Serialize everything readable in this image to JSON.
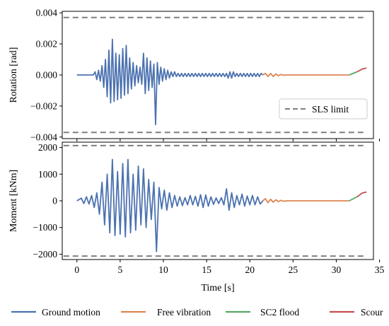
{
  "colors": {
    "ground_motion": "#4c72b0",
    "free_vibration": "#dd8452",
    "sc2_flood": "#55a868",
    "scour": "#c44e52",
    "limit": "#7f7f7f"
  },
  "chart_data": [
    {
      "type": "line",
      "panel": "top",
      "xlabel": "",
      "ylabel": "Rotation [rad]",
      "xlim": [
        -1.7,
        34.3
      ],
      "ylim": [
        -0.0041,
        0.0041
      ],
      "yticks": [
        -0.004,
        -0.002,
        0.0,
        0.002,
        0.004
      ],
      "ytick_labels": [
        "−0.004",
        "−0.002",
        "0.000",
        "0.002",
        "0.004"
      ],
      "xticks": [
        0,
        5,
        10,
        15,
        20,
        25,
        30,
        35
      ],
      "limit_lines": {
        "label": "SLS limit",
        "values": [
          0.0037,
          -0.0037
        ],
        "style": "dashed",
        "color": "#7f7f7f"
      },
      "legend": {
        "placement": "lower-right",
        "entries": [
          "SLS limit"
        ]
      },
      "series": [
        {
          "name": "Ground motion",
          "color": "#4c72b0",
          "x": [
            0,
            1.9,
            2.1,
            2.3,
            2.5,
            2.7,
            2.9,
            3.1,
            3.3,
            3.5,
            3.7,
            3.9,
            4.1,
            4.3,
            4.5,
            4.7,
            4.9,
            5.1,
            5.3,
            5.5,
            5.7,
            5.9,
            6.1,
            6.3,
            6.5,
            6.7,
            6.9,
            7.1,
            7.3,
            7.5,
            7.7,
            7.9,
            8.1,
            8.3,
            8.5,
            8.7,
            8.9,
            9.1,
            9.3,
            9.5,
            9.7,
            9.9,
            10.1,
            10.3,
            10.5,
            10.7,
            10.9,
            11.1,
            11.3,
            11.5,
            11.7,
            11.9,
            12.1,
            12.3,
            12.5,
            12.7,
            12.9,
            13.1,
            13.3,
            13.5,
            13.7,
            13.9,
            14.1,
            14.3,
            14.5,
            14.7,
            14.9,
            15.1,
            15.3,
            15.5,
            15.7,
            15.9,
            16.1,
            16.3,
            16.5,
            16.7,
            16.9,
            17.1,
            17.3,
            17.5,
            17.7,
            17.9,
            18.1,
            18.3,
            18.5,
            18.7,
            18.9,
            19.1,
            19.3,
            19.5,
            19.7,
            19.9,
            20.1,
            20.3,
            20.5,
            20.7,
            20.9,
            21.1,
            21.3,
            21.5
          ],
          "y": [
            0,
            0,
            0.0002,
            -0.0003,
            0.0003,
            -0.0004,
            0.0006,
            -0.0008,
            0.001,
            -0.0014,
            0.0016,
            -0.0018,
            0.0023,
            -0.0017,
            0.0014,
            -0.0016,
            0.0013,
            -0.0015,
            0.0017,
            -0.0013,
            0.0019,
            -0.0012,
            0.0011,
            -0.0009,
            0.0008,
            -0.0007,
            0.0006,
            -0.0005,
            0.0005,
            -0.0006,
            0.0014,
            -0.0012,
            0.0011,
            -0.001,
            0.0009,
            -0.0008,
            0.0007,
            -0.0032,
            0.0008,
            -0.0006,
            0.0005,
            -0.0004,
            0.0004,
            -0.0003,
            0.0003,
            -0.0002,
            0.0002,
            -0.0001,
            0.0002,
            -0.0001,
            0.0001,
            -0.0001,
            0.0001,
            -0.0001,
            0.0001,
            -0.0001,
            0.0001,
            -0.0001,
            0.0001,
            -0.0001,
            0.0001,
            -0.0001,
            0.0001,
            -0.0001,
            0.0001,
            -0.0001,
            0.0001,
            -0.0001,
            0.0001,
            -0.0001,
            0.0001,
            -0.0001,
            0.0001,
            -0.0001,
            0.0001,
            -0.0001,
            0.0001,
            -0.0001,
            0.0001,
            -0.0002,
            0.0002,
            -0.0002,
            0.0002,
            -0.0001,
            0.0001,
            -0.0001,
            0.0001,
            -0.0001,
            0.0001,
            -0.0001,
            0.0001,
            -0.0001,
            0.0001,
            -0.0001,
            0.0001,
            -0.0001,
            0.0001,
            -0.0001,
            0.0001,
            0.0
          ]
        },
        {
          "name": "Free vibration",
          "color": "#dd8452",
          "x": [
            21.5,
            21.8,
            22.1,
            22.4,
            22.7,
            23.0,
            23.3,
            23.6,
            23.9,
            24.3,
            25,
            28,
            31.5
          ],
          "y": [
            0.0,
            0.0001,
            -0.0001,
            0.0001,
            -0.0001,
            6e-05,
            -5e-05,
            3e-05,
            -2e-05,
            0.0,
            0.0,
            0.0,
            0.0
          ]
        },
        {
          "name": "SC2 flood",
          "color": "#55a868",
          "x": [
            31.5,
            32.4
          ],
          "y": [
            0.0,
            0.0002
          ]
        },
        {
          "name": "Scour",
          "color": "#c44e52",
          "x": [
            32.4,
            33.0,
            33.5
          ],
          "y": [
            0.0002,
            0.00038,
            0.00045
          ]
        }
      ]
    },
    {
      "type": "line",
      "panel": "bottom",
      "xlabel": "Time [s]",
      "ylabel": "Moment [kNm]",
      "xlim": [
        -1.7,
        34.3
      ],
      "ylim": [
        -2200,
        2200
      ],
      "yticks": [
        -2000,
        -1000,
        0,
        1000,
        2000
      ],
      "ytick_labels": [
        "−2000",
        "−1000",
        "0",
        "1000",
        "2000"
      ],
      "xticks": [
        0,
        5,
        10,
        15,
        20,
        25,
        30,
        35
      ],
      "xtick_labels": [
        "0",
        "5",
        "10",
        "15",
        "20",
        "25",
        "30",
        "35"
      ],
      "limit_lines": {
        "values": [
          2070,
          -2070
        ],
        "style": "dashed",
        "color": "#7f7f7f"
      },
      "series": [
        {
          "name": "Ground motion",
          "color": "#4c72b0",
          "x": [
            0,
            0.5,
            0.8,
            1.1,
            1.4,
            1.7,
            2.0,
            2.3,
            2.6,
            2.9,
            3.2,
            3.5,
            3.8,
            4.1,
            4.4,
            4.7,
            5.0,
            5.3,
            5.6,
            5.9,
            6.2,
            6.5,
            6.8,
            7.1,
            7.4,
            7.7,
            8.0,
            8.3,
            8.6,
            8.9,
            9.2,
            9.5,
            9.8,
            10.1,
            10.4,
            10.7,
            11.0,
            11.3,
            11.6,
            11.9,
            12.2,
            12.5,
            12.8,
            13.1,
            13.4,
            13.7,
            14.0,
            14.3,
            14.6,
            14.9,
            15.2,
            15.5,
            15.8,
            16.1,
            16.4,
            16.7,
            17.0,
            17.3,
            17.6,
            17.9,
            18.2,
            18.5,
            18.8,
            19.1,
            19.4,
            19.7,
            20.0,
            20.3,
            20.6,
            20.9,
            21.2,
            21.5
          ],
          "y": [
            0,
            100,
            -100,
            150,
            -120,
            200,
            -250,
            300,
            -500,
            700,
            -900,
            1000,
            -1200,
            1550,
            -1300,
            1100,
            -1250,
            1400,
            -1350,
            1550,
            -1200,
            1000,
            -1100,
            1300,
            -900,
            1200,
            -1000,
            800,
            -700,
            700,
            -1900,
            500,
            -300,
            400,
            -350,
            300,
            -250,
            200,
            -200,
            150,
            -180,
            120,
            -150,
            200,
            -150,
            170,
            -200,
            230,
            -250,
            220,
            -200,
            150,
            -130,
            110,
            -100,
            120,
            -150,
            450,
            -350,
            300,
            -250,
            200,
            -150,
            250,
            -200,
            180,
            -150,
            200,
            -150,
            150,
            -120,
            0
          ]
        },
        {
          "name": "Free vibration",
          "color": "#dd8452",
          "x": [
            21.5,
            21.8,
            22.1,
            22.4,
            22.7,
            23.0,
            23.3,
            23.6,
            23.9,
            24.3,
            25,
            28,
            31.5
          ],
          "y": [
            0,
            80,
            -70,
            60,
            -50,
            40,
            -30,
            20,
            -15,
            0,
            0,
            0,
            0
          ]
        },
        {
          "name": "SC2 flood",
          "color": "#55a868",
          "x": [
            31.5,
            32.4
          ],
          "y": [
            0,
            150
          ]
        },
        {
          "name": "Scour",
          "color": "#c44e52",
          "x": [
            32.4,
            33.0,
            33.5
          ],
          "y": [
            150,
            290,
            330
          ]
        }
      ]
    }
  ],
  "legend_bottom": {
    "placement": "bottom",
    "entries": [
      "Ground motion",
      "Free vibration",
      "SC2 flood",
      "Scour"
    ]
  }
}
